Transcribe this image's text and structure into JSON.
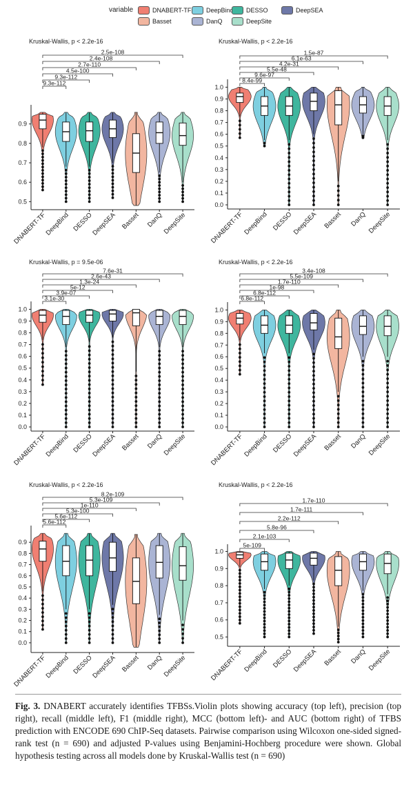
{
  "legend": {
    "title": "variable",
    "items": [
      {
        "label": "DNABERT-TF",
        "color": "#f07f72"
      },
      {
        "label": "DeepBind",
        "color": "#7ecfe0"
      },
      {
        "label": "DESSO",
        "color": "#3fb69e"
      },
      {
        "label": "DeepSEA",
        "color": "#6e78a8"
      },
      {
        "label": "Basset",
        "color": "#f2b6a0"
      },
      {
        "label": "DanQ",
        "color": "#aab4d4"
      },
      {
        "label": "DeepSite",
        "color": "#a8dfcb"
      }
    ]
  },
  "chart_data": [
    {
      "type": "violin",
      "global_test": "Kruskal-Wallis, p < 2.2e-16",
      "categories": [
        "DNABERT-TF",
        "DeepBind",
        "DESSO",
        "DeepSEA",
        "Basset",
        "DanQ",
        "DeepSite"
      ],
      "yticks": [
        "0.5",
        "0.6",
        "0.7",
        "0.8",
        "0.9"
      ],
      "ylim": [
        0.48,
        0.97
      ],
      "medians": [
        0.92,
        0.86,
        0.865,
        0.875,
        0.75,
        0.855,
        0.84
      ],
      "q1": [
        0.875,
        0.81,
        0.81,
        0.83,
        0.65,
        0.8,
        0.79
      ],
      "q3": [
        0.95,
        0.91,
        0.91,
        0.92,
        0.85,
        0.91,
        0.905
      ],
      "whisker_low": [
        0.78,
        0.68,
        0.68,
        0.7,
        0.48,
        0.65,
        0.6
      ],
      "min": [
        0.56,
        0.5,
        0.5,
        0.52,
        0.48,
        0.5,
        0.5
      ],
      "max": [
        0.96,
        0.96,
        0.96,
        0.96,
        0.96,
        0.96,
        0.96
      ],
      "comparisons": [
        {
          "with": "DeepBind",
          "p": "9.3e-112"
        },
        {
          "with": "DESSO",
          "p": "9.3e-112"
        },
        {
          "with": "DeepSEA",
          "p": "4.5e-100"
        },
        {
          "with": "Basset",
          "p": "2.7e-110"
        },
        {
          "with": "DanQ",
          "p": "2.4e-108"
        },
        {
          "with": "DeepSite",
          "p": "2.5e-108"
        }
      ]
    },
    {
      "type": "violin",
      "global_test": "Kruskal-Wallis, p < 2.2e-16",
      "categories": [
        "DNABERT-TF",
        "DeepBind",
        "DESSO",
        "DeepSEA",
        "Basset",
        "DanQ",
        "DeepSite"
      ],
      "yticks": [
        "0.0",
        "0.1",
        "0.2",
        "0.3",
        "0.4",
        "0.5",
        "0.6",
        "0.7",
        "0.8",
        "0.9",
        "1.0"
      ],
      "ylim": [
        0,
        1.02
      ],
      "medians": [
        0.92,
        0.84,
        0.84,
        0.88,
        0.85,
        0.85,
        0.84
      ],
      "q1": [
        0.87,
        0.76,
        0.76,
        0.8,
        0.68,
        0.78,
        0.76
      ],
      "q3": [
        0.95,
        0.92,
        0.92,
        0.95,
        0.97,
        0.92,
        0.92
      ],
      "whisker_low": [
        0.75,
        0.55,
        0.55,
        0.6,
        0.2,
        0.6,
        0.55
      ],
      "min": [
        0.57,
        0.5,
        0.0,
        0.0,
        0.0,
        0.57,
        0.0
      ],
      "max": [
        1.0,
        1.0,
        1.0,
        1.0,
        1.0,
        1.0,
        1.0
      ],
      "comparisons": [
        {
          "with": "DeepBind",
          "p": "8.4e-99"
        },
        {
          "with": "DESSO",
          "p": "9.6e-97"
        },
        {
          "with": "DeepSEA",
          "p": "5.5e-48"
        },
        {
          "with": "Basset",
          "p": "4.2e-31"
        },
        {
          "with": "DanQ",
          "p": "6.1e-63"
        },
        {
          "with": "DeepSite",
          "p": "1.5e-87"
        }
      ]
    },
    {
      "type": "violin",
      "global_test": "Kruskal-Wallis, p = 9.5e-06",
      "categories": [
        "DNABERT-TF",
        "DeepBind",
        "DESSO",
        "DeepSEA",
        "Basset",
        "DanQ",
        "DeepSite"
      ],
      "yticks": [
        "0.0",
        "0.1",
        "0.2",
        "0.3",
        "0.4",
        "0.5",
        "0.6",
        "0.7",
        "0.8",
        "0.9",
        "1.0"
      ],
      "ylim": [
        0,
        1.02
      ],
      "medians": [
        0.95,
        0.94,
        0.95,
        0.96,
        0.97,
        0.94,
        0.94
      ],
      "q1": [
        0.89,
        0.87,
        0.89,
        0.9,
        0.86,
        0.87,
        0.87
      ],
      "q3": [
        0.99,
        0.99,
        0.99,
        0.99,
        1.0,
        0.99,
        0.99
      ],
      "whisker_low": [
        0.74,
        0.68,
        0.72,
        0.76,
        0.47,
        0.68,
        0.68
      ],
      "min": [
        0.36,
        0.0,
        0.0,
        0.0,
        0.0,
        0.0,
        0.0
      ],
      "max": [
        1.0,
        1.0,
        1.0,
        1.0,
        1.0,
        1.0,
        1.0
      ],
      "comparisons": [
        {
          "with": "DeepBind",
          "p": "3.1e-30"
        },
        {
          "with": "DESSO",
          "p": "3.9e-07"
        },
        {
          "with": "DeepSEA",
          "p": "5e-12"
        },
        {
          "with": "Basset",
          "p": "1.3e-24"
        },
        {
          "with": "DanQ",
          "p": "2.6e-43"
        },
        {
          "with": "DeepSite",
          "p": "7.6e-31"
        }
      ]
    },
    {
      "type": "violin",
      "global_test": "Kruskal-Wallis, p < 2.2e-16",
      "categories": [
        "DNABERT-TF",
        "DeepBind",
        "DESSO",
        "DeepSEA",
        "Basset",
        "DanQ",
        "DeepSite"
      ],
      "yticks": [
        "0.0",
        "0.1",
        "0.2",
        "0.3",
        "0.4",
        "0.5",
        "0.6",
        "0.7",
        "0.8",
        "0.9",
        "1.0"
      ],
      "ylim": [
        0,
        1.02
      ],
      "medians": [
        0.93,
        0.87,
        0.87,
        0.89,
        0.77,
        0.86,
        0.86
      ],
      "q1": [
        0.88,
        0.8,
        0.8,
        0.83,
        0.67,
        0.79,
        0.78
      ],
      "q3": [
        0.97,
        0.95,
        0.95,
        0.97,
        0.93,
        0.95,
        0.95
      ],
      "whisker_low": [
        0.74,
        0.63,
        0.63,
        0.66,
        0.3,
        0.6,
        0.6
      ],
      "min": [
        0.45,
        0.0,
        0.0,
        0.0,
        0.0,
        0.0,
        0.0
      ],
      "max": [
        1.0,
        1.0,
        1.0,
        1.0,
        1.0,
        1.0,
        1.0
      ],
      "comparisons": [
        {
          "with": "DeepBind",
          "p": "6.8e-112"
        },
        {
          "with": "DESSO",
          "p": "6.8e-112"
        },
        {
          "with": "DeepSEA",
          "p": "1e-98"
        },
        {
          "with": "Basset",
          "p": "1.7e-110"
        },
        {
          "with": "DanQ",
          "p": "5.5e-109"
        },
        {
          "with": "DeepSite",
          "p": "3.4e-108"
        }
      ]
    },
    {
      "type": "violin",
      "global_test": "Kruskal-Wallis, p < 2.2e-16",
      "categories": [
        "DNABERT-TF",
        "DeepBind",
        "DESSO",
        "DeepSEA",
        "Basset",
        "DanQ",
        "DeepSite"
      ],
      "yticks": [
        "0.0",
        "0.1",
        "0.2",
        "0.3",
        "0.4",
        "0.5",
        "0.6",
        "0.7",
        "0.8",
        "0.9"
      ],
      "ylim": [
        -0.05,
        1.0
      ],
      "medians": [
        0.84,
        0.73,
        0.74,
        0.76,
        0.55,
        0.72,
        0.69
      ],
      "q1": [
        0.73,
        0.6,
        0.6,
        0.64,
        0.35,
        0.58,
        0.56
      ],
      "q3": [
        0.91,
        0.87,
        0.87,
        0.9,
        0.76,
        0.87,
        0.86
      ],
      "whisker_low": [
        0.46,
        0.3,
        0.3,
        0.34,
        -0.04,
        0.25,
        0.2
      ],
      "min": [
        0.12,
        0.0,
        0.0,
        0.0,
        -0.04,
        0.0,
        0.0
      ],
      "max": [
        0.98,
        0.98,
        0.98,
        0.98,
        0.97,
        0.98,
        0.98
      ],
      "comparisons": [
        {
          "with": "DeepBind",
          "p": "5.6e-112"
        },
        {
          "with": "DESSO",
          "p": "5.6e-112"
        },
        {
          "with": "DeepSEA",
          "p": "5.3e-100"
        },
        {
          "with": "Basset",
          "p": "1e-110"
        },
        {
          "with": "DanQ",
          "p": "5.3e-109"
        },
        {
          "with": "DeepSite",
          "p": "8.2e-109"
        }
      ]
    },
    {
      "type": "violin",
      "global_test": "Kruskal-Wallis, p < 2.2e-16",
      "categories": [
        "DNABERT-TF",
        "DeepBind",
        "DESSO",
        "DeepSEA",
        "Basset",
        "DanQ",
        "DeepSite"
      ],
      "yticks": [
        "0.5",
        "0.6",
        "0.7",
        "0.8",
        "0.9",
        "1.0"
      ],
      "ylim": [
        0.47,
        1.01
      ],
      "medians": [
        0.98,
        0.94,
        0.95,
        0.96,
        0.89,
        0.94,
        0.93
      ],
      "q1": [
        0.96,
        0.89,
        0.9,
        0.92,
        0.8,
        0.89,
        0.87
      ],
      "q3": [
        0.995,
        0.985,
        0.99,
        0.99,
        0.97,
        0.985,
        0.985
      ],
      "whisker_low": [
        0.91,
        0.78,
        0.8,
        0.83,
        0.56,
        0.77,
        0.75
      ],
      "min": [
        0.58,
        0.5,
        0.5,
        0.52,
        0.47,
        0.5,
        0.5
      ],
      "max": [
        1.0,
        1.0,
        1.0,
        1.0,
        1.0,
        1.0,
        1.0
      ],
      "comparisons": [
        {
          "with": "DeepBind",
          "p": "5e-109"
        },
        {
          "with": "DESSO",
          "p": "2.1e-103"
        },
        {
          "with": "DeepSEA",
          "p": "5.8e-96"
        },
        {
          "with": "Basset",
          "p": "2.2e-112"
        },
        {
          "with": "DanQ",
          "p": "1.7e-111"
        },
        {
          "with": "DeepSite",
          "p": "1.7e-110"
        }
      ]
    }
  ],
  "caption": {
    "label": "Fig. 3.",
    "text": "DNABERT accurately identifies TFBSs.Violin plots showing accuracy (top left), precision (top right), recall (middle left), F1 (middle right), MCC (bottom left)- and AUC (bottom right) of TFBS prediction with ENCODE 690 ChIP-Seq datasets. Pairwise comparison using Wilcoxon one-sided signed-rank test (n = 690) and adjusted P-values using Benjamini-Hochberg procedure were shown. Global hypothesis testing across all models done by Kruskal-Wallis test (n = 690)"
  }
}
